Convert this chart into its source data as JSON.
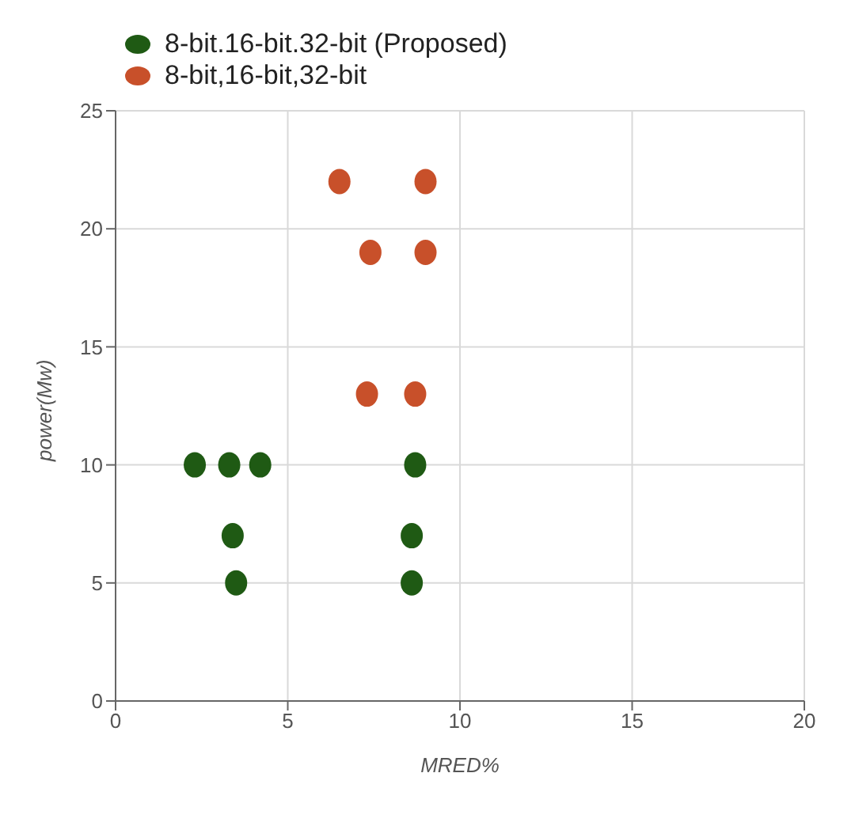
{
  "chart_data": {
    "type": "scatter",
    "xlabel": "MRED%",
    "ylabel": "power(Mw)",
    "series": [
      {
        "name": "8-bit.16-bit.32-bit (Proposed)",
        "color": "#1f5a14",
        "x": [
          2.3,
          3.3,
          4.2,
          3.4,
          3.5,
          8.7,
          8.6,
          8.6
        ],
        "values": [
          10,
          10,
          10,
          7,
          5,
          10,
          7,
          5
        ]
      },
      {
        "name": "8-bit,16-bit,32-bit",
        "color": "#c8502a",
        "x": [
          6.5,
          9,
          7.4,
          9,
          7.3,
          8.7
        ],
        "values": [
          22,
          22,
          19,
          19,
          13,
          13
        ]
      }
    ],
    "xlim": [
      0,
      20
    ],
    "xticks": [
      0,
      5,
      10,
      15,
      20
    ],
    "ylim": [
      0,
      25
    ],
    "yticks": [
      0,
      5,
      10,
      15,
      20,
      25
    ],
    "grid": true,
    "legend": "top left",
    "marker": "circle"
  }
}
